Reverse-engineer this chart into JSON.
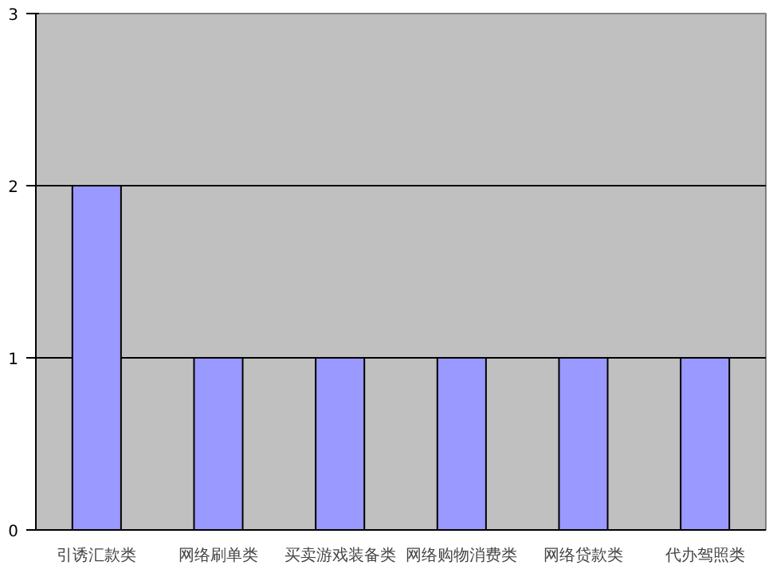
{
  "chart_data": {
    "type": "bar",
    "categories": [
      "引诱汇款类",
      "网络刷单类",
      "买卖游戏装备类",
      "网络购物消费类",
      "网络贷款类",
      "代办驾照类"
    ],
    "values": [
      2,
      1,
      1,
      1,
      1,
      1
    ],
    "color": "#9999ff",
    "ylim": [
      0,
      3
    ],
    "yticks": [
      0,
      1,
      2,
      3
    ],
    "grid": "y"
  }
}
